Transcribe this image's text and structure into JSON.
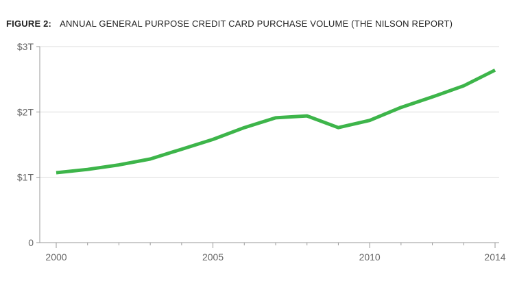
{
  "title": {
    "figure_label": "FIGURE 2:",
    "text": "ANNUAL GENERAL PURPOSE CREDIT CARD PURCHASE VOLUME (THE NILSON REPORT)"
  },
  "chart_data": {
    "type": "line",
    "title": "FIGURE 2:    ANNUAL GENERAL PURPOSE CREDIT CARD PURCHASE VOLUME (THE NILSON REPORT)",
    "xlabel": "",
    "ylabel": "",
    "x": [
      2000,
      2001,
      2002,
      2003,
      2004,
      2005,
      2006,
      2007,
      2008,
      2009,
      2010,
      2011,
      2012,
      2013,
      2014
    ],
    "series": [
      {
        "color": "#3db54a",
        "values": [
          1.07,
          1.12,
          1.19,
          1.28,
          1.43,
          1.58,
          1.76,
          1.91,
          1.94,
          1.76,
          1.87,
          2.07,
          2.23,
          2.4,
          2.64
        ]
      }
    ],
    "ylim": [
      0,
      3
    ],
    "xlim": [
      2000,
      2014
    ],
    "y_ticks": [
      {
        "value": 0,
        "label": "0"
      },
      {
        "value": 1,
        "label": "$1T"
      },
      {
        "value": 2,
        "label": "$2T"
      },
      {
        "value": 3,
        "label": "$3T"
      }
    ],
    "x_ticks": [
      {
        "value": 2000,
        "label": "2000"
      },
      {
        "value": 2005,
        "label": "2005"
      },
      {
        "value": 2010,
        "label": "2010"
      },
      {
        "value": 2014,
        "label": "2014"
      }
    ],
    "grid": "horizontal",
    "legend": "none"
  }
}
